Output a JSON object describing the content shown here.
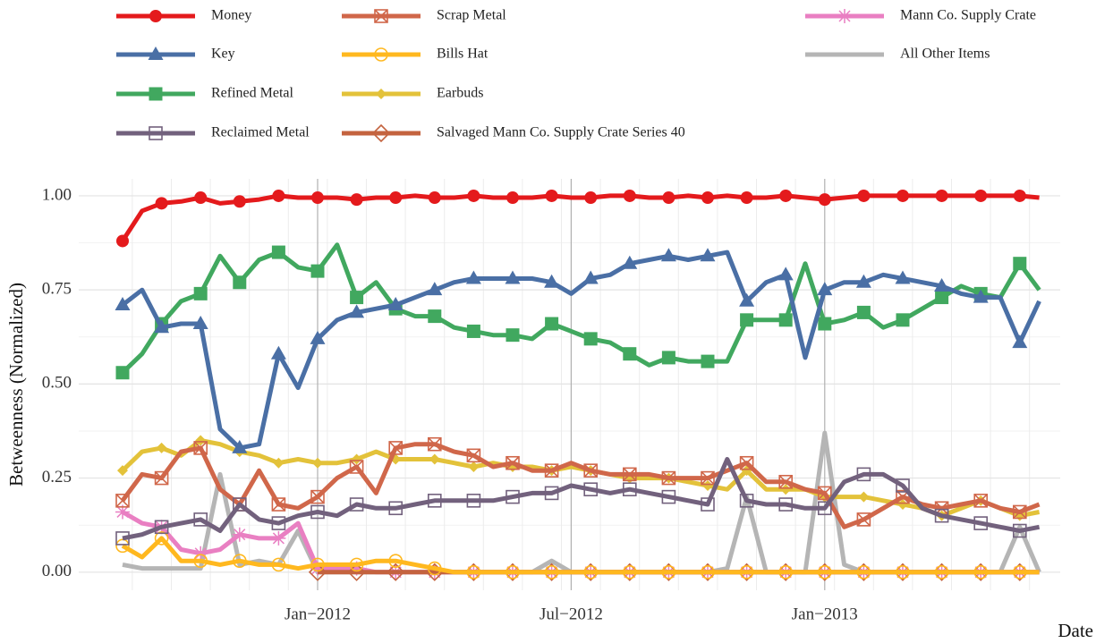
{
  "chart_data": {
    "type": "line",
    "y_label": "Betweenness (Normalized)",
    "x_label": "Date",
    "categories": [
      null,
      null,
      null,
      null,
      null,
      null,
      null,
      null,
      null,
      null,
      "Jan−2012",
      null,
      null,
      null,
      null,
      null,
      null,
      null,
      null,
      null,
      null,
      null,
      null,
      "Jul−2012",
      null,
      null,
      null,
      null,
      null,
      null,
      null,
      null,
      null,
      null,
      null,
      null,
      "Jan−2013",
      null,
      null,
      null,
      null,
      null,
      null,
      null,
      null,
      null,
      null,
      null
    ],
    "ylim": [
      -0.048,
      1.045
    ],
    "yticks": [
      {
        "value": 0,
        "label": "0.00"
      },
      {
        "value": 0.25,
        "label": "0.25"
      },
      {
        "value": 0.5,
        "label": "0.50"
      },
      {
        "value": 0.75,
        "label": "0.75"
      },
      {
        "value": 1,
        "label": "1.00"
      }
    ],
    "grid": true,
    "legend": "top",
    "series": [
      {
        "name": "Money",
        "color": "#e41a1c",
        "marker": "circle",
        "values": [
          0.88,
          0.96,
          0.98,
          0.985,
          0.995,
          0.98,
          0.985,
          0.99,
          1.0,
          0.995,
          0.995,
          0.995,
          0.99,
          0.995,
          0.995,
          1.0,
          0.995,
          0.995,
          1.0,
          0.995,
          0.995,
          0.995,
          1.0,
          0.995,
          0.995,
          1.0,
          1.0,
          0.995,
          0.995,
          1.0,
          0.995,
          1.0,
          0.995,
          0.995,
          1.0,
          0.995,
          0.99,
          0.995,
          1.0,
          1.0,
          1.0,
          1.0,
          1.0,
          1.0,
          1.0,
          1.0,
          1.0,
          0.995
        ]
      },
      {
        "name": "Key",
        "color": "#4a6fa5",
        "marker": "triangle",
        "values": [
          0.71,
          0.75,
          0.65,
          0.66,
          0.66,
          0.38,
          0.33,
          0.34,
          0.58,
          0.49,
          0.62,
          0.67,
          0.69,
          0.7,
          0.71,
          0.73,
          0.75,
          0.77,
          0.78,
          0.78,
          0.78,
          0.78,
          0.77,
          0.74,
          0.78,
          0.79,
          0.82,
          0.83,
          0.84,
          0.83,
          0.84,
          0.85,
          0.72,
          0.77,
          0.79,
          0.57,
          0.75,
          0.77,
          0.77,
          0.79,
          0.78,
          0.77,
          0.76,
          0.74,
          0.73,
          0.73,
          0.61,
          0.72
        ]
      },
      {
        "name": "Refined Metal",
        "color": "#41a85f",
        "marker": "square",
        "values": [
          0.53,
          0.58,
          0.66,
          0.72,
          0.74,
          0.84,
          0.77,
          0.83,
          0.85,
          0.81,
          0.8,
          0.87,
          0.73,
          0.77,
          0.7,
          0.68,
          0.68,
          0.65,
          0.64,
          0.63,
          0.63,
          0.62,
          0.66,
          0.64,
          0.62,
          0.61,
          0.58,
          0.55,
          0.57,
          0.56,
          0.56,
          0.56,
          0.67,
          0.67,
          0.67,
          0.82,
          0.66,
          0.67,
          0.69,
          0.65,
          0.67,
          0.7,
          0.73,
          0.76,
          0.74,
          0.73,
          0.82,
          0.75
        ]
      },
      {
        "name": "Reclaimed Metal",
        "color": "#72617d",
        "marker": "square-open",
        "values": [
          0.09,
          0.1,
          0.12,
          0.13,
          0.14,
          0.11,
          0.18,
          0.14,
          0.13,
          0.15,
          0.16,
          0.15,
          0.18,
          0.17,
          0.17,
          0.18,
          0.19,
          0.19,
          0.19,
          0.19,
          0.2,
          0.21,
          0.21,
          0.23,
          0.22,
          0.21,
          0.22,
          0.21,
          0.2,
          0.19,
          0.18,
          0.3,
          0.19,
          0.18,
          0.18,
          0.17,
          0.17,
          0.24,
          0.26,
          0.26,
          0.23,
          0.17,
          0.15,
          0.14,
          0.13,
          0.12,
          0.11,
          0.12
        ]
      },
      {
        "name": "Scrap Metal",
        "color": "#d0674a",
        "marker": "square-x",
        "values": [
          0.19,
          0.26,
          0.25,
          0.32,
          0.33,
          0.22,
          0.18,
          0.27,
          0.18,
          0.17,
          0.2,
          0.25,
          0.28,
          0.21,
          0.33,
          0.34,
          0.34,
          0.32,
          0.31,
          0.28,
          0.29,
          0.27,
          0.27,
          0.29,
          0.27,
          0.26,
          0.26,
          0.26,
          0.25,
          0.25,
          0.25,
          0.27,
          0.29,
          0.24,
          0.24,
          0.22,
          0.21,
          0.12,
          0.14,
          0.17,
          0.2,
          0.18,
          0.17,
          0.18,
          0.19,
          0.17,
          0.16,
          0.18
        ]
      },
      {
        "name": "Bills Hat",
        "color": "#ffb81f",
        "marker": "circle-open",
        "values": [
          0.07,
          0.04,
          0.09,
          0.03,
          0.03,
          0.02,
          0.03,
          0.02,
          0.02,
          0.01,
          0.02,
          0.02,
          0.02,
          0.03,
          0.03,
          0.02,
          0.01,
          0,
          0,
          0,
          0,
          0,
          0,
          0,
          0,
          0,
          0,
          0,
          0,
          0,
          0,
          0,
          0,
          0,
          0,
          0,
          0,
          0,
          0,
          0,
          0,
          0,
          0,
          0,
          0,
          0,
          0,
          0
        ]
      },
      {
        "name": "Earbuds",
        "color": "#e3c23a",
        "marker": "diamond",
        "values": [
          0.27,
          0.32,
          0.33,
          0.31,
          0.35,
          0.34,
          0.32,
          0.31,
          0.29,
          0.3,
          0.29,
          0.29,
          0.3,
          0.32,
          0.3,
          0.3,
          0.3,
          0.29,
          0.28,
          0.29,
          0.28,
          0.28,
          0.27,
          0.28,
          0.27,
          0.26,
          0.25,
          0.25,
          0.25,
          0.24,
          0.23,
          0.22,
          0.27,
          0.22,
          0.22,
          0.22,
          0.2,
          0.2,
          0.2,
          0.19,
          0.18,
          0.17,
          0.15,
          0.17,
          0.19,
          0.17,
          0.15,
          0.16
        ]
      },
      {
        "name": "Salvaged Mann Co. Supply Crate Series 40",
        "color": "#c4633f",
        "marker": "diamond-open",
        "values": [
          null,
          null,
          null,
          null,
          null,
          null,
          null,
          null,
          null,
          null,
          0,
          0,
          0,
          0,
          0,
          0,
          0,
          0,
          0,
          0,
          0,
          0,
          0,
          0,
          0,
          0,
          0,
          0,
          0,
          0,
          0,
          0,
          0,
          0,
          0,
          0,
          0,
          0,
          0,
          0,
          0,
          0,
          0,
          0,
          0,
          0,
          0,
          0
        ]
      },
      {
        "name": "Mann Co. Supply Crate",
        "color": "#e97fc2",
        "marker": "asterisk",
        "values": [
          0.16,
          0.13,
          0.12,
          0.06,
          0.05,
          0.06,
          0.1,
          0.09,
          0.09,
          0.13,
          0.01,
          0.01,
          0.01,
          0,
          0,
          0,
          0,
          0,
          0,
          0,
          0,
          0,
          0,
          0,
          0,
          0,
          0,
          0,
          0,
          0,
          0,
          0,
          0,
          0,
          0,
          0,
          0,
          0,
          0,
          0,
          0,
          0,
          0,
          0,
          0,
          0,
          0,
          0
        ]
      },
      {
        "name": "All Other Items",
        "color": "#b5b5b5",
        "marker": "none",
        "values": [
          0.02,
          0.01,
          0.01,
          0.01,
          0.01,
          0.26,
          0.02,
          0.03,
          0.02,
          0.11,
          0,
          0,
          0,
          0,
          0,
          0,
          0,
          0,
          0,
          0,
          0,
          0,
          0.03,
          0,
          0,
          0,
          0,
          0,
          0,
          0,
          0,
          0.01,
          0.2,
          0,
          0,
          0,
          0.37,
          0.02,
          0,
          0,
          0,
          0,
          0,
          0,
          0,
          0,
          0.12,
          0
        ]
      }
    ]
  }
}
